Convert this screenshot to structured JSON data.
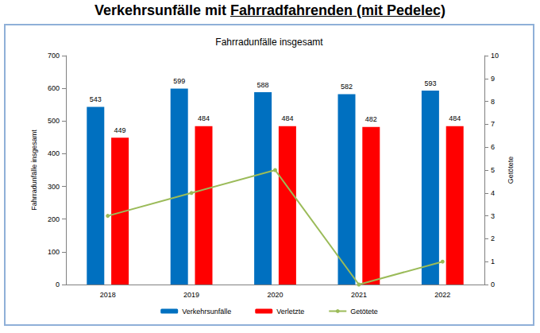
{
  "chart_data": {
    "type": "bar",
    "title": "Verkehrsunfälle mit Fahrradfahrenden (mit Pedelec)",
    "subtitle": "Fahrradunfälle insgesamt",
    "y_label": "Fahrradunfälle insgesamt",
    "y2_label": "Getötete",
    "categories": [
      "2018",
      "2019",
      "2020",
      "2021",
      "2022"
    ],
    "series": [
      {
        "name": "Verkehrsunfälle",
        "type": "bar",
        "color": "#0070C0",
        "values": [
          543,
          599,
          588,
          582,
          593
        ],
        "data_labels": true
      },
      {
        "name": "Verletzte",
        "type": "bar",
        "color": "#FF0000",
        "values": [
          449,
          484,
          484,
          482,
          484
        ],
        "data_labels": true
      },
      {
        "name": "Getötete",
        "type": "line",
        "axis": "y2",
        "color": "#9BBB59",
        "marker": "circle",
        "line_style": "solid",
        "values": [
          3,
          4,
          5,
          0,
          1
        ],
        "data_labels": false
      }
    ],
    "ylim": [
      0,
      700
    ],
    "yticks": [
      0,
      100,
      200,
      300,
      400,
      500,
      600,
      700
    ],
    "y2lim": [
      0,
      10
    ],
    "y2ticks": [
      0,
      1,
      2,
      3,
      4,
      5,
      6,
      7,
      8,
      9,
      10
    ],
    "grid": false,
    "legend": "bottom"
  }
}
